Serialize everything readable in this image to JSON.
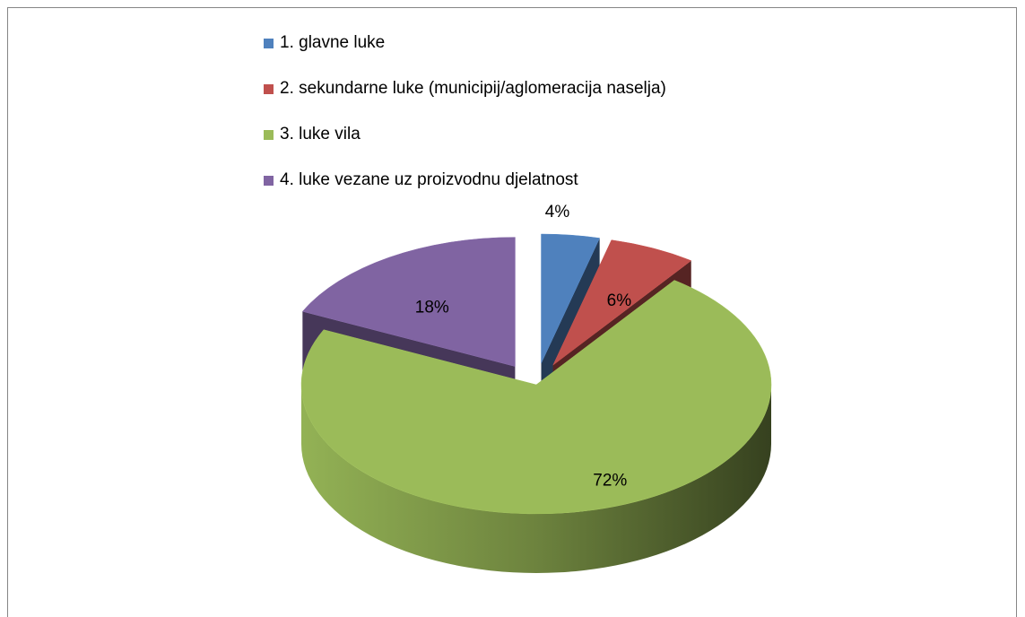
{
  "chart_data": {
    "type": "pie",
    "title": "",
    "legend_position": "top",
    "exploded": true,
    "style": "3d",
    "slices": [
      {
        "label": "1. glavne luke",
        "value": 4,
        "display": "4%",
        "color": "#4f81bd"
      },
      {
        "label": "2. sekundarne luke (municipij/aglomeracija naselja)",
        "value": 6,
        "display": "6%",
        "color": "#c0504d"
      },
      {
        "label": "3. luke vila",
        "value": 72,
        "display": "72%",
        "color": "#9bbb59"
      },
      {
        "label": "4. luke vezane uz proizvodnu djelatnost",
        "value": 18,
        "display": "18%",
        "color": "#8064a2"
      }
    ]
  }
}
